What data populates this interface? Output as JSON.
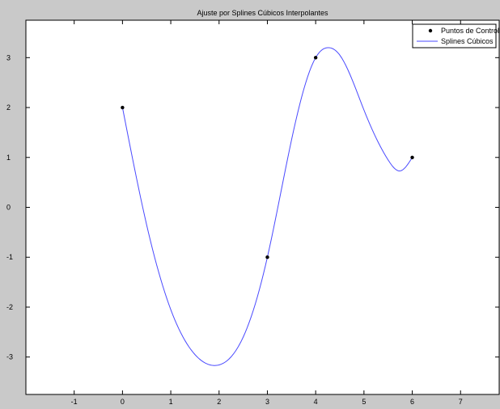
{
  "chart_data": {
    "type": "line",
    "title": "Ajuste por Splines Cúbicos Interpolantes",
    "xlabel": "",
    "ylabel": "",
    "xlim": [
      -2,
      7.8
    ],
    "ylim": [
      -3.75,
      3.75
    ],
    "x_ticks": [
      -1,
      0,
      1,
      2,
      3,
      4,
      5,
      6,
      7
    ],
    "y_ticks": [
      -3,
      -2,
      -1,
      0,
      1,
      2,
      3
    ],
    "x_tick_labels": [
      "-1",
      "0",
      "1",
      "2",
      "3",
      "4",
      "5",
      "6",
      "7"
    ],
    "y_tick_labels": [
      "-3",
      "-2",
      "-1",
      "0",
      "1",
      "2",
      "3"
    ],
    "grid": false,
    "legend_position": "top-right",
    "series": [
      {
        "name": "Puntos de Control",
        "kind": "scatter",
        "marker": "dot",
        "color": "#000000",
        "x": [
          0,
          3,
          4,
          6
        ],
        "y": [
          2,
          -1,
          3,
          1
        ]
      },
      {
        "name": "Splines Cúbicos",
        "kind": "line",
        "color": "#4a4aff",
        "x": [
          0,
          0.5,
          1,
          1.5,
          1.9,
          2.5,
          3,
          3.5,
          4,
          4.25,
          4.5,
          5,
          5.5,
          5.75,
          6
        ],
        "y": [
          2,
          -0.35,
          -2.05,
          -2.95,
          -3.17,
          -2.6,
          -1,
          1.35,
          3,
          3.2,
          3.05,
          1.95,
          0.95,
          0.73,
          1
        ]
      }
    ]
  },
  "colors": {
    "figure_background": "#c9c9c9",
    "axes_background": "#ffffff",
    "spline": "#4a4aff",
    "points": "#000000"
  }
}
